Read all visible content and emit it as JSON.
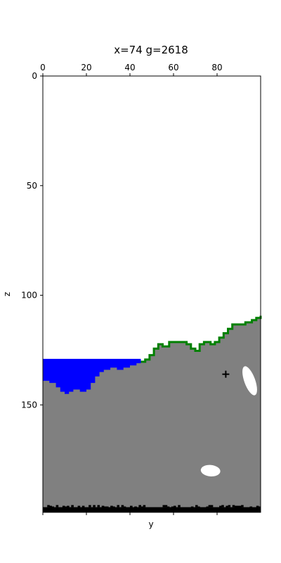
{
  "title": "x=74 g=2618",
  "axes": {
    "xlabel": "y",
    "ylabel": "z",
    "y_range": [
      0,
      100
    ],
    "z_range": [
      0,
      199
    ],
    "z_inverted": true,
    "top_ticks": [
      "0",
      "20",
      "40",
      "60",
      "80"
    ],
    "top_tick_values": [
      0,
      20,
      40,
      60,
      80
    ],
    "left_ticks": [
      "0",
      "50",
      "100",
      "150"
    ],
    "left_tick_values": [
      0,
      50,
      100,
      150
    ],
    "bottom_tick_values": [
      0,
      20,
      40,
      60,
      80
    ]
  },
  "colors": {
    "air": "#ffffff",
    "stone": "#808080",
    "water": "#0000ff",
    "grass": "#008000",
    "bedrock": "#000000",
    "cave": "#ffffff",
    "marker": "#000000"
  },
  "world": {
    "water_level": 129,
    "water_extent_y": [
      0,
      45
    ],
    "surface_profile": [
      [
        0,
        139
      ],
      [
        3,
        140
      ],
      [
        6,
        142
      ],
      [
        8,
        144
      ],
      [
        10,
        145
      ],
      [
        12,
        144
      ],
      [
        14,
        143
      ],
      [
        17,
        144
      ],
      [
        20,
        143
      ],
      [
        22,
        140
      ],
      [
        24,
        137
      ],
      [
        26,
        135
      ],
      [
        28,
        134
      ],
      [
        31,
        133
      ],
      [
        34,
        134
      ],
      [
        37,
        133
      ],
      [
        40,
        132
      ],
      [
        43,
        131
      ],
      [
        45,
        130
      ],
      [
        47,
        129
      ],
      [
        49,
        127
      ],
      [
        51,
        124
      ],
      [
        53,
        122
      ],
      [
        55,
        123
      ],
      [
        58,
        121
      ],
      [
        62,
        121
      ],
      [
        66,
        122
      ],
      [
        68,
        124
      ],
      [
        70,
        125
      ],
      [
        72,
        122
      ],
      [
        74,
        121
      ],
      [
        77,
        122
      ],
      [
        79,
        121
      ],
      [
        81,
        119
      ],
      [
        83,
        117
      ],
      [
        85,
        115
      ],
      [
        87,
        113
      ],
      [
        90,
        113
      ],
      [
        93,
        112
      ],
      [
        96,
        111
      ],
      [
        98,
        110
      ],
      [
        100,
        109
      ]
    ],
    "grass_from_y": 45,
    "bedrock_top_z": 196,
    "caves": [
      {
        "y": 95,
        "z": 139,
        "ry": 2.5,
        "rz": 7,
        "rot": -20
      },
      {
        "y": 77,
        "z": 180,
        "ry": 4.5,
        "rz": 2.6,
        "rot": 5
      }
    ],
    "marker": {
      "y": 84,
      "z": 136
    }
  }
}
